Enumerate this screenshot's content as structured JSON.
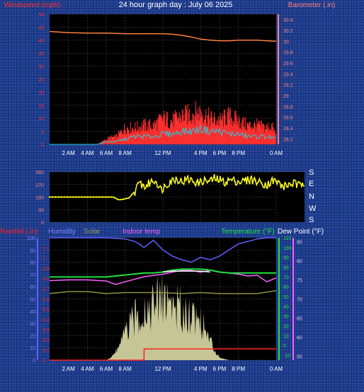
{
  "title": "24 hour graph day : July 06 2025",
  "colors": {
    "wind": "#ff2020",
    "gust": "#ff3030",
    "avgwind": "#20d0e0",
    "baro": "#ff8040",
    "dir": "#ffff20",
    "rain": "#ff2020",
    "humidity": "#6060ff",
    "solar": "#e8e8b0",
    "indoor": "#ff60ff",
    "temp": "#20e040",
    "dew": "#ffffff",
    "plotbg": "#000000",
    "axisL": "#ff3030",
    "axisR": "#ff8080",
    "grid": "#555555"
  },
  "chart_data": [
    {
      "type": "line",
      "name": "wind-baro",
      "left_axis_label": "Windspeed (mph)",
      "right_axis_label": "Barometer (.in)",
      "x_ticks": [
        "2 AM",
        "4 AM",
        "6 AM",
        "8 AM",
        "12 PM",
        "4 PM",
        "6 PM",
        "8 PM",
        "0 AM"
      ],
      "x_tick_hours": [
        2,
        4,
        6,
        8,
        12,
        16,
        18,
        20,
        24
      ],
      "y_left_ticks": [
        0,
        5,
        10,
        15,
        20,
        25,
        30,
        35,
        40,
        45,
        50
      ],
      "y_left_range": [
        0,
        50
      ],
      "y_right_ticks": [
        "28.2",
        "28.4",
        "28.6",
        "28.8",
        "29",
        "29.2",
        "29.4",
        "29.6",
        "29.8",
        "30",
        "30.2",
        "30.4"
      ],
      "y_right_range": [
        28.1,
        30.5
      ],
      "barometer_hours": [
        0,
        2,
        4,
        6,
        8,
        10,
        12,
        13,
        14,
        15,
        16,
        17,
        18,
        19,
        20,
        21,
        22,
        23,
        24
      ],
      "barometer_values": [
        30.18,
        30.16,
        30.15,
        30.15,
        30.14,
        30.14,
        30.14,
        30.13,
        30.11,
        30.08,
        30.04,
        30.02,
        30.01,
        30.01,
        30.02,
        30.02,
        30.02,
        30.01,
        30.0
      ],
      "gust_hours": [
        0,
        2,
        4,
        5,
        5.5,
        6,
        6.5,
        7,
        7.5,
        8,
        9,
        10,
        11,
        12,
        13,
        14,
        15,
        16,
        17,
        18,
        19,
        20,
        21,
        22,
        23,
        23.5,
        24
      ],
      "gust_values": [
        0,
        0,
        0,
        0,
        1,
        2,
        3,
        3,
        5,
        7,
        7,
        8,
        8,
        11,
        10,
        12,
        13,
        14,
        11,
        10,
        12,
        10,
        8,
        8,
        7,
        8,
        4
      ],
      "avg_wind_hours": [
        0,
        5,
        6,
        7,
        8,
        9,
        10,
        11,
        12,
        13,
        14,
        15,
        16,
        17,
        18,
        19,
        20,
        21,
        22,
        23,
        24
      ],
      "avg_wind_values": [
        0,
        0,
        1,
        1,
        2,
        3,
        3,
        3,
        4,
        4,
        5,
        5,
        6,
        5,
        5,
        4,
        4,
        3,
        3,
        3,
        2
      ]
    },
    {
      "type": "scatter",
      "name": "wind-direction",
      "y_ticks": [
        0,
        90,
        180,
        270,
        360
      ],
      "y_range": [
        0,
        360
      ],
      "compass_labels": [
        "S",
        "E",
        "N",
        "W",
        "S"
      ],
      "hours": [
        0,
        1,
        2,
        3,
        4,
        5,
        6,
        6.5,
        7,
        7.5,
        8,
        8.5,
        9,
        9.5,
        10,
        10.5,
        11,
        11.5,
        12,
        12.5,
        13,
        13.5,
        14,
        14.5,
        15,
        15.5,
        16,
        16.5,
        17,
        17.5,
        18,
        18.5,
        19,
        19.5,
        20,
        20.5,
        21,
        21.5,
        22,
        22.5,
        23,
        23.5,
        24
      ],
      "values": [
        180,
        180,
        180,
        180,
        180,
        180,
        180,
        160,
        165,
        175,
        220,
        280,
        250,
        290,
        300,
        230,
        270,
        300,
        310,
        290,
        305,
        295,
        280,
        300,
        290,
        310,
        300,
        285,
        305,
        295,
        290,
        300,
        310,
        290,
        280,
        270,
        300,
        285,
        250,
        270,
        280,
        260,
        290
      ]
    },
    {
      "type": "line",
      "name": "rain-humidity-temp",
      "axis_labels": [
        "Rainfall (.in)",
        "Humidity",
        "Solar",
        "Indoor temp",
        "Temperature (°F)",
        "Dew Point (°F)"
      ],
      "y_rain_ticks": [
        "0",
        "0.1",
        "0.2",
        "0.3",
        "0.4",
        "0.5",
        "0.6",
        "0.7",
        "0.8",
        "0.9",
        "1",
        "1.1"
      ],
      "y_pct_ticks": [
        0,
        10,
        20,
        30,
        40,
        50,
        60,
        70,
        80,
        90,
        100
      ],
      "y_temp_ticks": [
        -10,
        0,
        10,
        20,
        30,
        40,
        50,
        60,
        70,
        80,
        90,
        100,
        110
      ],
      "y_indoor_ticks": [
        55,
        60,
        65,
        70,
        75,
        80,
        85
      ],
      "humidity_hours": [
        0,
        2,
        4,
        6,
        8,
        9,
        9.5,
        10,
        11,
        12,
        13,
        14,
        15,
        16,
        17,
        18,
        19,
        20,
        21,
        22,
        23,
        24
      ],
      "humidity_values": [
        100,
        100,
        100,
        100,
        99,
        97,
        95,
        92,
        98,
        90,
        85,
        82,
        80,
        84,
        82,
        85,
        90,
        95,
        97,
        99,
        100,
        100
      ],
      "solar_hours": [
        0,
        5,
        6,
        6.5,
        7,
        8,
        9,
        10,
        11,
        12,
        13,
        14,
        15,
        16,
        17,
        18,
        19,
        20,
        21,
        24
      ],
      "solar_values": [
        0,
        0,
        0,
        2,
        8,
        25,
        40,
        48,
        52,
        60,
        55,
        48,
        45,
        38,
        18,
        2,
        0,
        0,
        0,
        0
      ],
      "indoor_hours": [
        0,
        2,
        4,
        6,
        7,
        8,
        10,
        12,
        14,
        15,
        16,
        17,
        18,
        19,
        20,
        21,
        22,
        23,
        24
      ],
      "indoor_values": [
        74.8,
        75,
        75,
        74.7,
        73.8,
        74.5,
        75.8,
        76.5,
        77.5,
        77.5,
        77,
        77.5,
        77,
        76.8,
        76.5,
        76,
        76.2,
        74.5,
        75.5
      ],
      "temp_hours": [
        0,
        2,
        4,
        6,
        8,
        10,
        11,
        12,
        13,
        14,
        16,
        17,
        18,
        19,
        20,
        22,
        24
      ],
      "temp_values": [
        70,
        70,
        70,
        70,
        72,
        74,
        74,
        75,
        77,
        78,
        78,
        77,
        75,
        74,
        74,
        74,
        74
      ],
      "dew_hours": [
        12,
        13,
        14,
        15,
        16,
        17
      ],
      "dew_values": [
        75,
        76,
        76,
        76,
        76,
        75
      ],
      "yellowline_hours": [
        0,
        2,
        4,
        6,
        8,
        10,
        12,
        14,
        16,
        18,
        20,
        22,
        24
      ],
      "yellowline_values": [
        53,
        55,
        55,
        53,
        54,
        54,
        54,
        53,
        54,
        53,
        53,
        53,
        56
      ],
      "rain_hours": [
        0,
        10,
        10.01,
        21,
        24
      ],
      "rain_values": [
        0,
        0,
        0.11,
        0.11,
        0.11
      ]
    }
  ]
}
